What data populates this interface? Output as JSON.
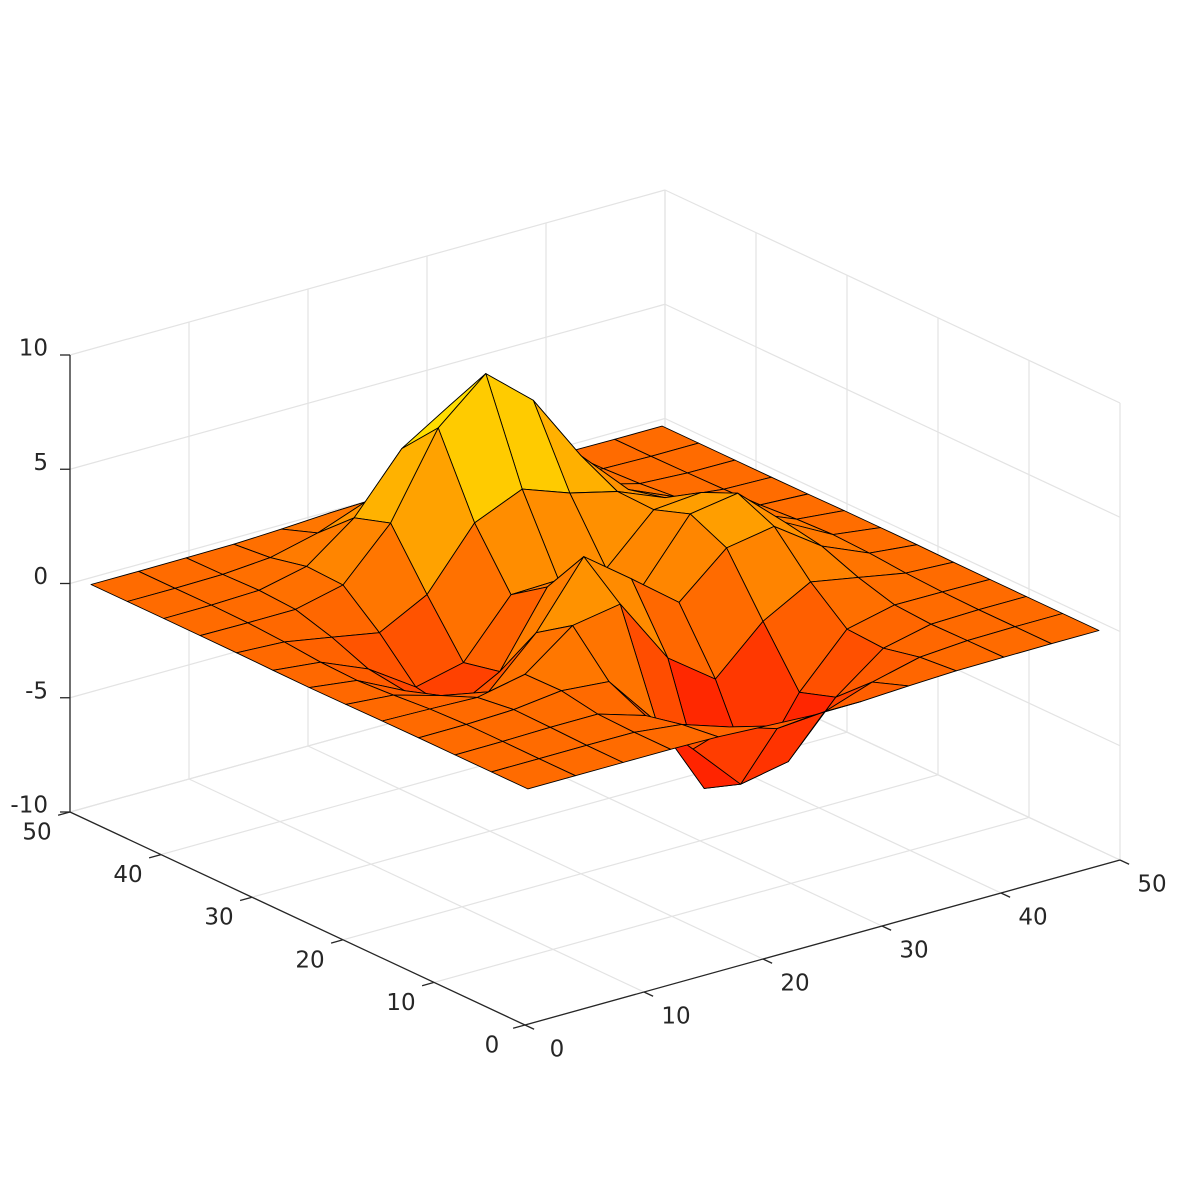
{
  "chart_data": {
    "type": "surface",
    "x": [
      1,
      5,
      9,
      13,
      17,
      21,
      25,
      29,
      33,
      37,
      41,
      45,
      49
    ],
    "y": [
      1,
      5,
      9,
      13,
      17,
      21,
      25,
      29,
      33,
      37,
      41,
      45,
      49
    ],
    "z": [
      [
        0,
        0,
        0,
        0,
        -0.03,
        -0.14,
        -0.24,
        -0.22,
        -0.11,
        -0.03,
        -0.01,
        0,
        0
      ],
      [
        0,
        0,
        0.01,
        0,
        -0.23,
        -0.92,
        -1.57,
        -1.41,
        -0.69,
        -0.18,
        -0.03,
        0,
        0
      ],
      [
        0,
        0.01,
        0.05,
        0.05,
        -0.59,
        -2.63,
        -4.75,
        -4.34,
        -2.1,
        -0.53,
        -0.06,
        0,
        0
      ],
      [
        0,
        0.01,
        0.08,
        0.33,
        0.15,
        -2.19,
        -5.68,
        -5.76,
        -2.63,
        -0.44,
        0.04,
        0.03,
        0
      ],
      [
        -0.01,
        -0.06,
        -0.13,
        0.3,
        1.86,
        2.22,
        -0.72,
        -2.22,
        -0.27,
        0.88,
        0.5,
        0.11,
        0.01
      ],
      [
        -0.03,
        -0.2,
        -0.8,
        -1.21,
        0.8,
        3.55,
        2,
        0.39,
        2.2,
        2.56,
        1.12,
        0.24,
        0.03
      ],
      [
        -0.04,
        -0.3,
        -1.33,
        -2.77,
        -1.65,
        1.48,
        0.98,
        0.37,
        2.94,
        3.27,
        1.41,
        0.3,
        0.03
      ],
      [
        -0.03,
        -0.25,
        -1.12,
        -2.49,
        -2,
        0.39,
        0.46,
        0.38,
        2.38,
        2.56,
        1.09,
        0.23,
        0.03
      ],
      [
        -0.01,
        -0.11,
        -0.48,
        -0.86,
        0.23,
        2.79,
        3.69,
        2.94,
        2.43,
        1.58,
        0.58,
        0.11,
        0.01
      ],
      [
        0,
        -0.02,
        -0.01,
        0.48,
        2.61,
        6.2,
        8,
        6.25,
        3.25,
        1.19,
        0.29,
        0.05,
        0
      ],
      [
        0,
        0.01,
        0.08,
        0.55,
        2.1,
        4.55,
        5.85,
        4.56,
        2.21,
        0.68,
        0.13,
        0.02,
        0
      ],
      [
        0,
        0,
        0.03,
        0.19,
        0.69,
        1.47,
        1.89,
        1.47,
        0.7,
        0.2,
        0.04,
        0,
        0
      ],
      [
        0,
        0,
        0.01,
        0.03,
        0.11,
        0.23,
        0.3,
        0.23,
        0.11,
        0.03,
        0.01,
        0,
        0
      ]
    ],
    "xlim": [
      0,
      50
    ],
    "ylim": [
      0,
      50
    ],
    "zlim": [
      -10,
      10
    ],
    "xticks": [
      0,
      10,
      20,
      30,
      40,
      50
    ],
    "yticks": [
      0,
      10,
      20,
      30,
      40,
      50
    ],
    "zticks": [
      -10,
      -5,
      0,
      5,
      10
    ],
    "grid": true,
    "colormap": [
      "#ff0000",
      "#ffff00"
    ],
    "edge_color": "#000000"
  }
}
